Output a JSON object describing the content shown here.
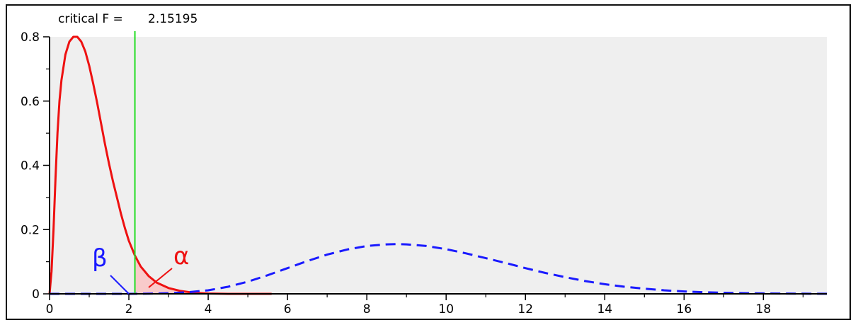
{
  "chart_data": {
    "type": "line",
    "title": "",
    "xlabel": "",
    "ylabel": "",
    "xlim": [
      0,
      19.6
    ],
    "ylim": [
      0,
      0.8
    ],
    "x_ticks": [
      "0",
      "2",
      "4",
      "6",
      "8",
      "10",
      "12",
      "14",
      "16",
      "18"
    ],
    "x_tick_values": [
      0,
      2,
      4,
      6,
      8,
      10,
      12,
      14,
      16,
      18
    ],
    "y_ticks": [
      "0",
      "0.2",
      "0.4",
      "0.6",
      "0.8"
    ],
    "y_tick_values": [
      0,
      0.2,
      0.4,
      0.6,
      0.8
    ],
    "critical": {
      "label": "critical F =",
      "value": 2.15195,
      "value_text": "2.15195",
      "color": "#22dd22"
    },
    "annotations": {
      "beta": {
        "text": "β",
        "color": "#1a1aff",
        "target_x": 2.0,
        "target_y": 0.0
      },
      "alpha": {
        "text": "α",
        "color": "#ee1111",
        "target_x": 2.5,
        "target_y": 0.02
      }
    },
    "plot_background": "#efefef",
    "grid": false,
    "series": [
      {
        "style": "solid",
        "color": "#ee1111",
        "x": [
          0.0,
          0.05,
          0.1,
          0.15,
          0.2,
          0.25,
          0.3,
          0.4,
          0.5,
          0.6,
          0.7,
          0.8,
          0.9,
          1.0,
          1.1,
          1.2,
          1.3,
          1.4,
          1.5,
          1.6,
          1.7,
          1.8,
          1.9,
          2.0,
          2.15,
          2.3,
          2.5,
          2.7,
          3.0,
          3.3,
          3.6,
          4.0,
          4.5,
          5.0,
          5.6
        ],
        "y": [
          0.0,
          0.07,
          0.2,
          0.36,
          0.5,
          0.6,
          0.665,
          0.745,
          0.785,
          0.8,
          0.8,
          0.785,
          0.755,
          0.71,
          0.655,
          0.595,
          0.53,
          0.465,
          0.405,
          0.35,
          0.3,
          0.25,
          0.205,
          0.165,
          0.12,
          0.085,
          0.055,
          0.035,
          0.018,
          0.009,
          0.004,
          0.001,
          0.0,
          0.0,
          0.0
        ]
      },
      {
        "style": "dashed",
        "color": "#1a1aff",
        "x": [
          0.0,
          1.0,
          2.0,
          2.5,
          3.0,
          3.5,
          4.0,
          4.5,
          5.0,
          5.5,
          6.0,
          6.5,
          7.0,
          7.5,
          8.0,
          8.5,
          8.75,
          9.0,
          9.5,
          10.0,
          10.5,
          11.0,
          11.5,
          12.0,
          12.5,
          13.0,
          13.5,
          14.0,
          14.5,
          15.0,
          15.5,
          16.0,
          16.5,
          17.0,
          17.5,
          18.0,
          18.5,
          19.0,
          19.6
        ],
        "y": [
          0.0,
          0.0,
          0.0,
          0.0005,
          0.002,
          0.005,
          0.011,
          0.022,
          0.038,
          0.058,
          0.08,
          0.102,
          0.122,
          0.138,
          0.149,
          0.154,
          0.155,
          0.154,
          0.149,
          0.139,
          0.126,
          0.111,
          0.096,
          0.08,
          0.065,
          0.052,
          0.04,
          0.03,
          0.022,
          0.016,
          0.011,
          0.0075,
          0.005,
          0.0033,
          0.0021,
          0.0013,
          0.0008,
          0.0005,
          0.0003
        ]
      }
    ]
  }
}
